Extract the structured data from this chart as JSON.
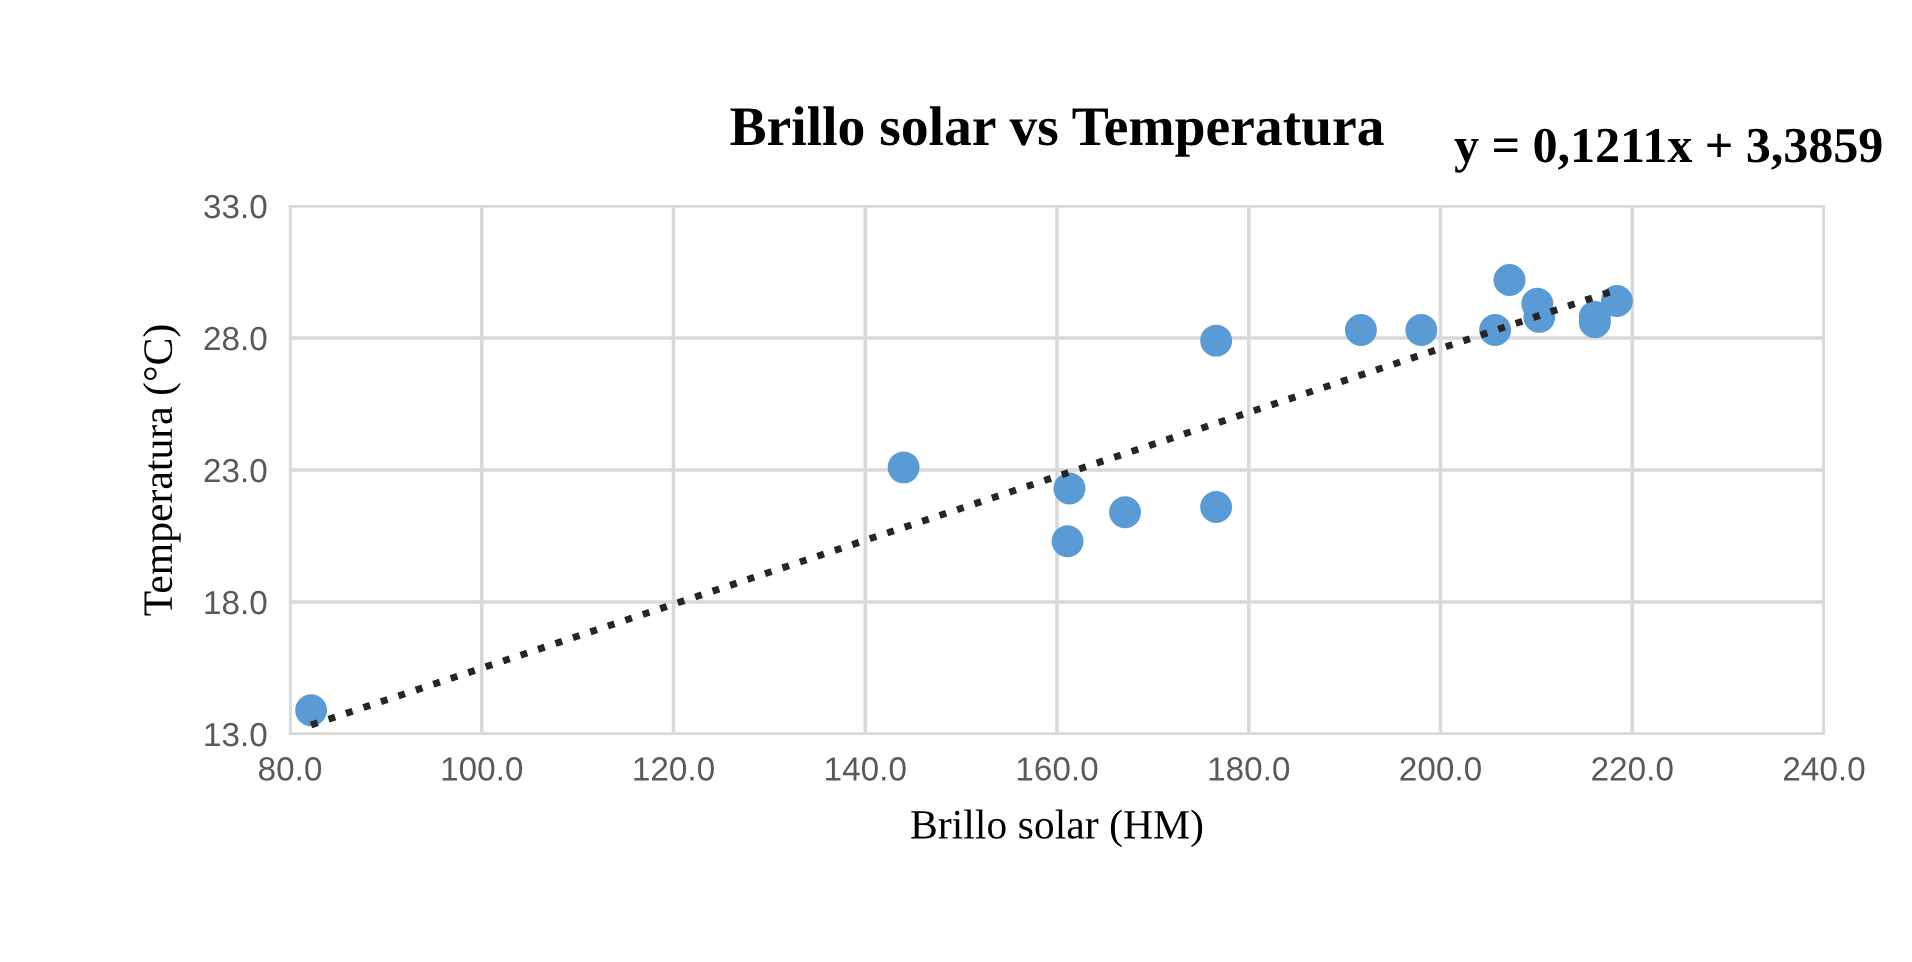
{
  "chart_data": {
    "type": "scatter",
    "title": "Brillo solar vs Temperatura",
    "xlabel": "Brillo solar (HM)",
    "ylabel": "Temperatura (°C)",
    "annotations": [
      "y = 0,1211x + 3,3859"
    ],
    "xlim": [
      80,
      240
    ],
    "xticks": [
      {
        "value": 80,
        "label": "80.0"
      },
      {
        "value": 100,
        "label": "100.0"
      },
      {
        "value": 120,
        "label": "120.0"
      },
      {
        "value": 140,
        "label": "140.0"
      },
      {
        "value": 160,
        "label": "160.0"
      },
      {
        "value": 180,
        "label": "180.0"
      },
      {
        "value": 200,
        "label": "200.0"
      },
      {
        "value": 220,
        "label": "220.0"
      },
      {
        "value": 240,
        "label": "240.0"
      }
    ],
    "ylim": [
      13,
      33
    ],
    "yticks": [
      {
        "value": 13,
        "label": "13.0"
      },
      {
        "value": 18,
        "label": "18.0"
      },
      {
        "value": 23,
        "label": "23.0"
      },
      {
        "value": 28,
        "label": "28.0"
      },
      {
        "value": 33,
        "label": "33.0"
      }
    ],
    "grid": true,
    "legend": false,
    "series": [
      {
        "marker": "circle",
        "color": "#5b9bd5",
        "x": [
          82.2,
          144.0,
          161.3,
          161.1,
          167.1,
          176.6,
          176.6,
          191.7,
          198.0,
          205.7,
          207.2,
          210.1,
          210.3,
          216.1,
          216.1,
          218.4
        ],
        "values": [
          13.9,
          23.1,
          22.3,
          20.3,
          21.4,
          21.6,
          27.9,
          28.3,
          28.3,
          28.3,
          30.2,
          29.3,
          28.8,
          28.6,
          28.8,
          29.4
        ]
      },
      {
        "type": "line",
        "line_style": "dotted",
        "marker": "none",
        "color": "#262626",
        "x": [
          82.2,
          218.4
        ],
        "values": [
          13.34,
          29.83
        ]
      }
    ]
  }
}
